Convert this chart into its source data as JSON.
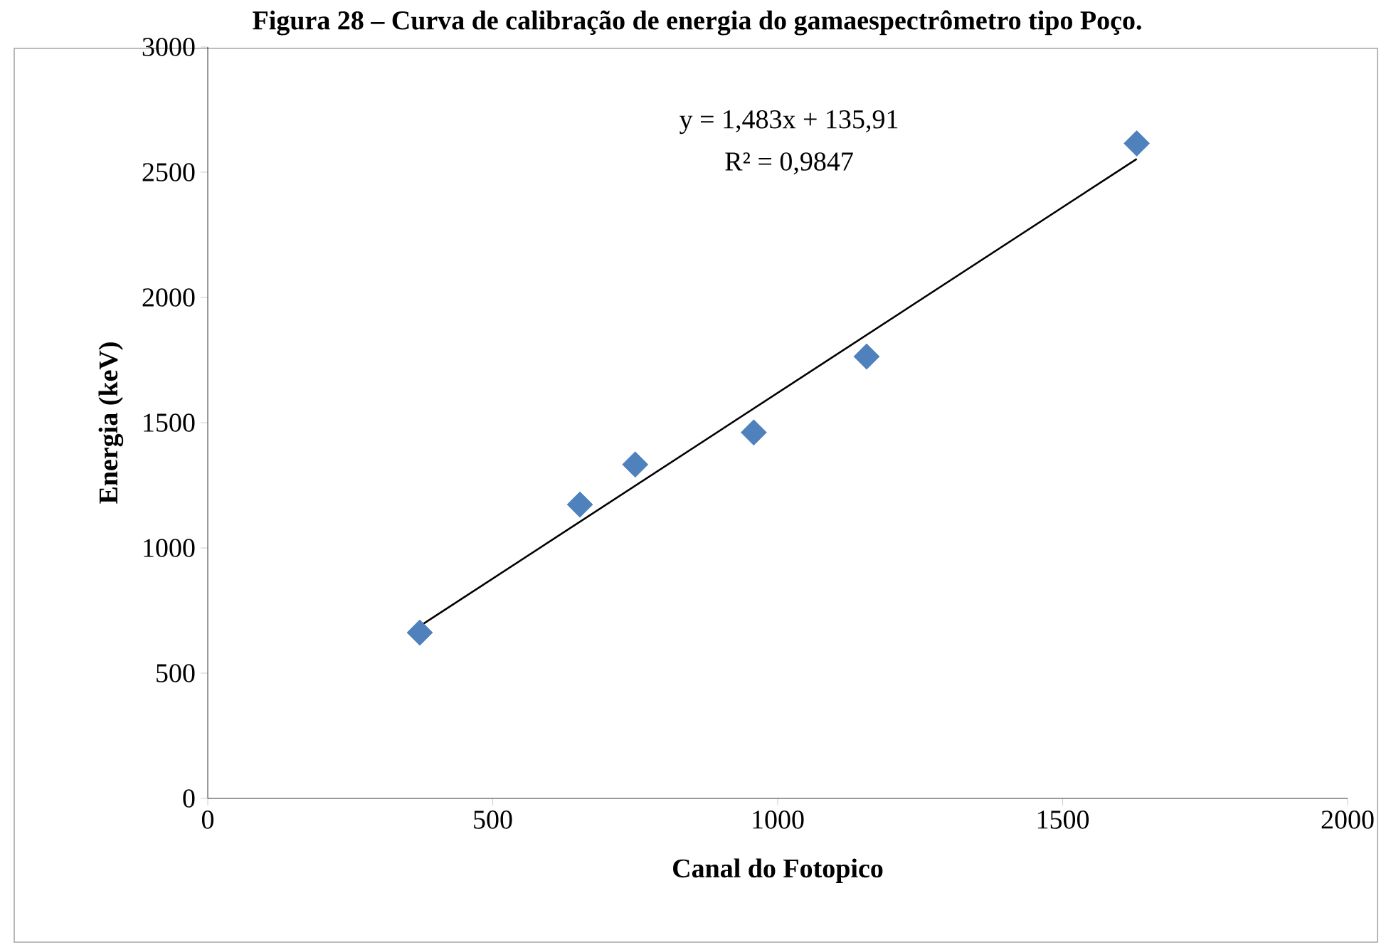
{
  "chart_data": {
    "type": "scatter",
    "title": "Figura 28 – Curva de calibração de energia do gamaespectrômetro tipo Poço.",
    "xlabel": "Canal do Fotopico",
    "ylabel": "Energia (keV)",
    "series": [
      {
        "color": "#4f81bd",
        "marker": "diamond",
        "x": [
          372,
          653,
          750,
          958,
          1156,
          1630
        ],
        "values": [
          662,
          1173,
          1333,
          1461,
          1764,
          2615
        ]
      },
      {
        "type": "line",
        "color": "#000000",
        "marker": "none",
        "line_style": "solid",
        "x": [
          372,
          1630
        ],
        "values": [
          688,
          2553
        ]
      }
    ],
    "annotations": [
      "y = 1,483x + 135,91",
      "R² = 0,9847"
    ],
    "xlim": [
      0,
      2000
    ],
    "xticks": [
      0,
      500,
      1000,
      1500,
      2000
    ],
    "ylim": [
      0,
      3000
    ],
    "yticks": [
      0,
      500,
      1000,
      1500,
      2000,
      2500,
      3000
    ],
    "grid": false
  }
}
